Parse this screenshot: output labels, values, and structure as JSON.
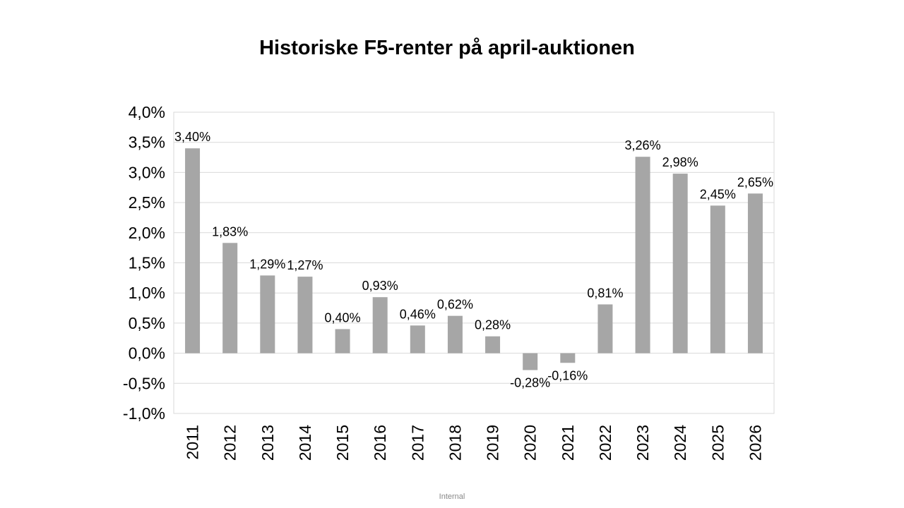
{
  "slide": {
    "title": "Historiske F5-renter på april-auktionen",
    "footer": "Internal"
  },
  "chart_data": {
    "type": "bar",
    "title": "Historiske F5-renter på april-auktionen",
    "xlabel": "",
    "ylabel": "",
    "categories": [
      "2011",
      "2012",
      "2013",
      "2014",
      "2015",
      "2016",
      "2017",
      "2018",
      "2019",
      "2020",
      "2021",
      "2022",
      "2023",
      "2024",
      "2025",
      "2026"
    ],
    "values": [
      3.4,
      1.83,
      1.29,
      1.27,
      0.4,
      0.93,
      0.46,
      0.62,
      0.28,
      -0.28,
      -0.16,
      0.81,
      3.26,
      2.98,
      2.45,
      2.65
    ],
    "data_labels": [
      "3,40%",
      "1,83%",
      "1,29%",
      "1,27%",
      "0,40%",
      "0,93%",
      "0,46%",
      "0,62%",
      "0,28%",
      "-0,28%",
      "-0,16%",
      "0,81%",
      "3,26%",
      "2,98%",
      "2,45%",
      "2,65%"
    ],
    "ylim": [
      -1.0,
      4.0
    ],
    "yticks": [
      -1.0,
      -0.5,
      0.0,
      0.5,
      1.0,
      1.5,
      2.0,
      2.5,
      3.0,
      3.5,
      4.0
    ],
    "ytick_labels": [
      "-1,0%",
      "-0,5%",
      "0,0%",
      "0,5%",
      "1,0%",
      "1,5%",
      "2,0%",
      "2,5%",
      "3,0%",
      "3,5%",
      "4,0%"
    ],
    "grid": true,
    "legend": "none",
    "bar_color": "#a6a6a6",
    "grid_color": "#d9d9d9"
  }
}
